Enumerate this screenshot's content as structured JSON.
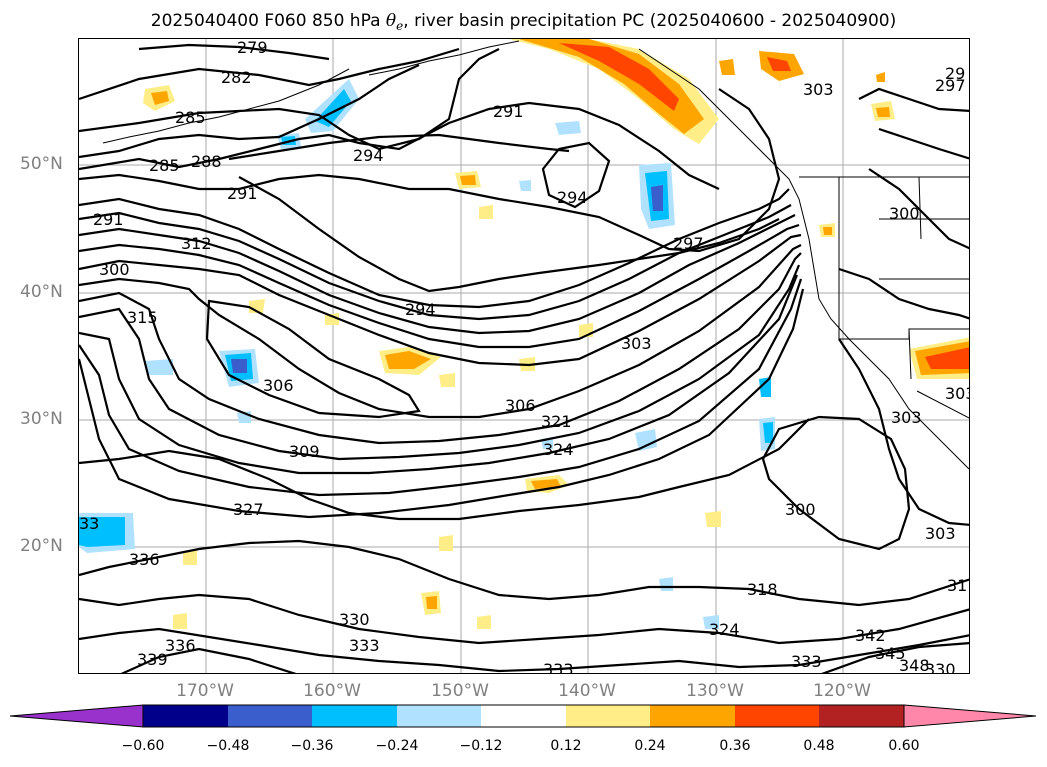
{
  "title": {
    "prefix": "2025040400 F060 850 hPa ",
    "symbol_base": "θ",
    "symbol_sub": "e",
    "suffix": ", river basin precipitation PC (2025040600 - 2025040900)"
  },
  "map": {
    "projection_extent": {
      "lon": [
        -180,
        -110
      ],
      "lat": [
        10,
        60
      ]
    },
    "lat_ticks": [
      "50°N",
      "40°N",
      "30°N",
      "20°N"
    ],
    "lon_ticks": [
      "170°W",
      "160°W",
      "150°W",
      "140°W",
      "130°W",
      "120°W"
    ],
    "contour_field": "850 hPa theta-e (K)",
    "contour_labels": [
      "279",
      "282",
      "285",
      "285",
      "288",
      "291",
      "291",
      "291",
      "294",
      "294",
      "294",
      "294",
      "297",
      "297",
      "300",
      "300",
      "300",
      "303",
      "303",
      "303",
      "303",
      "303",
      "306",
      "306",
      "309",
      "312",
      "315",
      "318",
      "321",
      "324",
      "324",
      "327",
      "330",
      "333",
      "333",
      "333",
      "336",
      "336",
      "339",
      "342",
      "345",
      "348",
      "330",
      "33",
      "31",
      "29"
    ],
    "shading": "river basin precipitation PC"
  },
  "colorbar": {
    "labels": [
      "−0.60",
      "−0.48",
      "−0.36",
      "−0.24",
      "−0.12",
      "0.12",
      "0.24",
      "0.36",
      "0.48",
      "0.60"
    ],
    "colors": [
      "#9932cc",
      "#00008b",
      "#3a5fcd",
      "#00bfff",
      "#b0e2ff",
      "#ffffff",
      "#ffee88",
      "#ffa500",
      "#ff4500",
      "#b22222",
      "#ff88aa"
    ],
    "extend": "both"
  }
}
